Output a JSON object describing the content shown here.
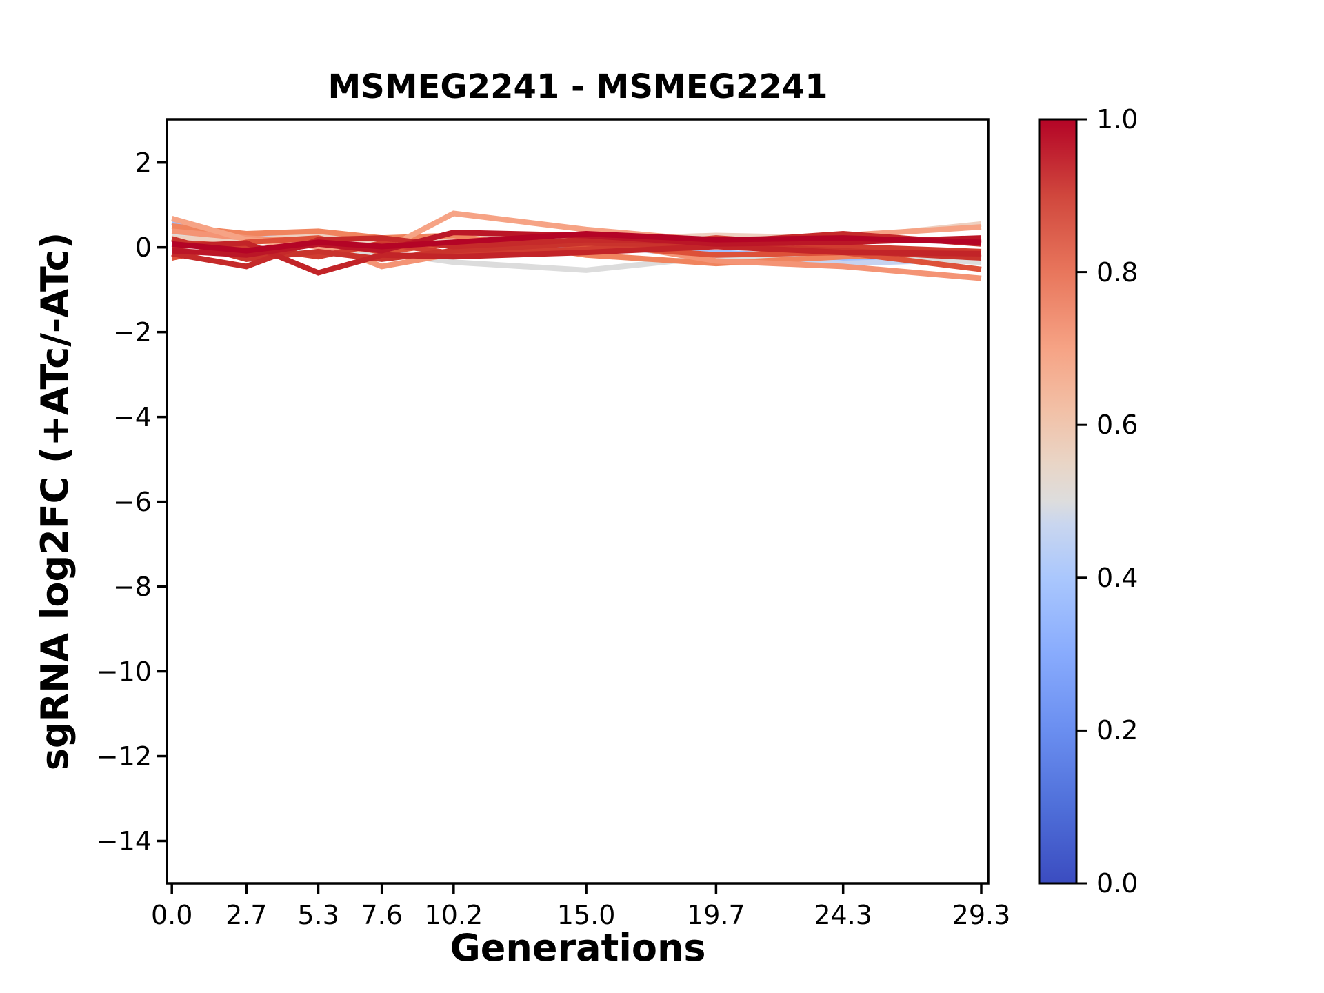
{
  "figure": {
    "title": "MSMEG2241 - MSMEG2241",
    "xlabel": "Generations",
    "ylabel": "sgRNA log2FC (+ATc/-ATc)"
  },
  "chart_data": {
    "type": "line",
    "title": "MSMEG2241 - MSMEG2241",
    "xlabel": "Generations",
    "ylabel": "sgRNA log2FC (+ATc/-ATc)",
    "grid": false,
    "xlim": [
      -0.18,
      29.55
    ],
    "ylim": [
      -15.0,
      3.02
    ],
    "x": [
      0.0,
      2.7,
      5.3,
      7.6,
      10.2,
      15.0,
      19.7,
      24.3,
      29.3
    ],
    "x_tick_labels": [
      "0.0",
      "2.7",
      "5.3",
      "7.6",
      "10.2",
      "15.0",
      "19.7",
      "24.3",
      "29.3"
    ],
    "y_ticks": [
      2,
      0,
      -2,
      -4,
      -6,
      -8,
      -10,
      -12,
      -14
    ],
    "y_tick_labels": [
      "2",
      "0",
      "−2",
      "−4",
      "−6",
      "−8",
      "−10",
      "−12",
      "−14"
    ],
    "series": [
      {
        "color_value": 0.38,
        "color": "#9fbffe",
        "values": [
          0.58,
          0.12,
          0.22,
          0.05,
          0.18,
          0.02,
          -0.12,
          -0.25,
          -0.3
        ]
      },
      {
        "color_value": 0.45,
        "color": "#c6d3f0",
        "values": [
          0.42,
          0.28,
          0.12,
          0.18,
          0.08,
          0.12,
          -0.28,
          -0.38,
          -0.28
        ]
      },
      {
        "color_value": 0.5,
        "color": "#dcdcdc",
        "values": [
          0.3,
          0.02,
          -0.18,
          -0.12,
          -0.35,
          -0.54,
          -0.22,
          -0.18,
          -0.35
        ]
      },
      {
        "color_value": 0.56,
        "color": "#eed0c0",
        "values": [
          0.22,
          0.15,
          0.3,
          0.1,
          0.22,
          0.18,
          0.28,
          0.22,
          0.55
        ]
      },
      {
        "color_value": 0.76,
        "color": "#f0845e",
        "values": [
          0.5,
          0.32,
          0.38,
          0.22,
          0.28,
          -0.18,
          -0.38,
          -0.22,
          -0.12
        ]
      },
      {
        "color_value": 0.72,
        "color": "#f49475",
        "values": [
          0.38,
          0.22,
          0.12,
          -0.45,
          -0.15,
          0.18,
          -0.32,
          -0.45,
          -0.73
        ]
      },
      {
        "color_value": 0.68,
        "color": "#f6a385",
        "values": [
          0.68,
          0.18,
          0.02,
          -0.08,
          0.8,
          0.42,
          0.15,
          0.28,
          0.48
        ]
      },
      {
        "color_value": 0.85,
        "color": "#dd5139",
        "values": [
          -0.25,
          0.12,
          0.22,
          -0.12,
          0.12,
          0.05,
          -0.18,
          -0.12,
          -0.52
        ]
      },
      {
        "color_value": 0.9,
        "color": "#d03c30",
        "values": [
          0.12,
          0.02,
          -0.22,
          0.1,
          -0.15,
          -0.05,
          0.22,
          0.02,
          -0.1
        ]
      },
      {
        "color_value": 0.92,
        "color": "#c9332c",
        "values": [
          0.2,
          -0.28,
          -0.1,
          -0.28,
          -0.08,
          0.1,
          0.05,
          -0.08,
          -0.25
        ]
      },
      {
        "color_value": 0.94,
        "color": "#c52a2a",
        "values": [
          -0.15,
          -0.45,
          0.18,
          0.22,
          0.02,
          0.18,
          0.12,
          0.32,
          0.08
        ]
      },
      {
        "color_value": 0.95,
        "color": "#c22428",
        "values": [
          0.02,
          0.1,
          -0.6,
          -0.18,
          -0.22,
          -0.12,
          0.02,
          -0.12,
          -0.15
        ]
      },
      {
        "color_value": 0.97,
        "color": "#bb1627",
        "values": [
          -0.08,
          -0.18,
          0.08,
          -0.08,
          0.35,
          0.28,
          0.08,
          0.12,
          0.22
        ]
      },
      {
        "color_value": 1.0,
        "color": "#b40426",
        "values": [
          0.08,
          -0.08,
          0.12,
          0.02,
          0.12,
          0.32,
          0.18,
          0.22,
          0.12
        ]
      }
    ],
    "colorbar": {
      "cmap": "coolwarm",
      "tick_values": [
        0.0,
        0.2,
        0.4,
        0.6,
        0.8,
        1.0
      ],
      "tick_labels": [
        "0.0",
        "0.2",
        "0.4",
        "0.6",
        "0.8",
        "1.0"
      ],
      "stops": [
        [
          0.0,
          "#3b4cc0"
        ],
        [
          0.1,
          "#4f6fd9"
        ],
        [
          0.2,
          "#6a8ef0"
        ],
        [
          0.3,
          "#88abfd"
        ],
        [
          0.4,
          "#aac7fd"
        ],
        [
          0.47,
          "#c9d6ef"
        ],
        [
          0.5,
          "#dddddd"
        ],
        [
          0.55,
          "#e9d5c6"
        ],
        [
          0.62,
          "#f2c0a6"
        ],
        [
          0.7,
          "#f6a385"
        ],
        [
          0.8,
          "#e8765c"
        ],
        [
          0.9,
          "#d0473d"
        ],
        [
          1.0,
          "#b40426"
        ]
      ]
    }
  }
}
